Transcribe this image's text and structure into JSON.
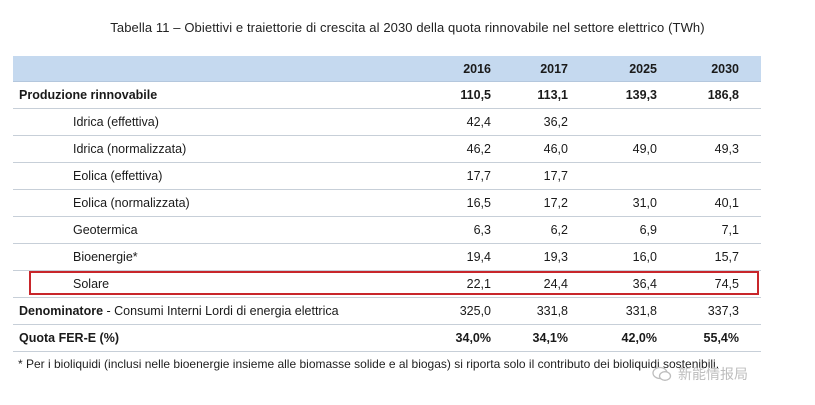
{
  "caption": "Tabella 11 – Obiettivi e traiettorie di crescita al 2030 della quota rinnovabile nel settore elettrico (TWh)",
  "header": [
    "2016",
    "2017",
    "2025",
    "2030"
  ],
  "rows": [
    {
      "label": "Produzione rinnovabile",
      "values": [
        "110,5",
        "113,1",
        "139,3",
        "186,8"
      ]
    },
    {
      "label": "Idrica (effettiva)",
      "values": [
        "42,4",
        "36,2",
        "",
        ""
      ]
    },
    {
      "label": "Idrica (normalizzata)",
      "values": [
        "46,2",
        "46,0",
        "49,0",
        "49,3"
      ]
    },
    {
      "label": "Eolica (effettiva)",
      "values": [
        "17,7",
        "17,7",
        "",
        ""
      ]
    },
    {
      "label": "Eolica (normalizzata)",
      "values": [
        "16,5",
        "17,2",
        "31,0",
        "40,1"
      ]
    },
    {
      "label": "Geotermica",
      "values": [
        "6,3",
        "6,2",
        "6,9",
        "7,1"
      ]
    },
    {
      "label": "Bioenergie*",
      "values": [
        "19,4",
        "19,3",
        "16,0",
        "15,7"
      ]
    },
    {
      "label": "Solare",
      "values": [
        "22,1",
        "24,4",
        "36,4",
        "74,5"
      ]
    },
    {
      "label_bold": "Denominatore",
      "label_rest": " - Consumi Interni Lordi di energia elettrica",
      "values": [
        "325,0",
        "331,8",
        "331,8",
        "337,3"
      ]
    },
    {
      "label": "Quota FER-E (%)",
      "values": [
        "34,0%",
        "34,1%",
        "42,0%",
        "55,4%"
      ]
    }
  ],
  "footnote": "* Per i bioliquidi (inclusi nelle bioenergie insieme alle biomasse solide e al biogas) si riporta solo il contributo dei bioliquidi sostenibili.",
  "watermark": "新能情报局",
  "colors": {
    "header_bg": "#c5d9ef",
    "highlight_border": "#c8262b"
  }
}
